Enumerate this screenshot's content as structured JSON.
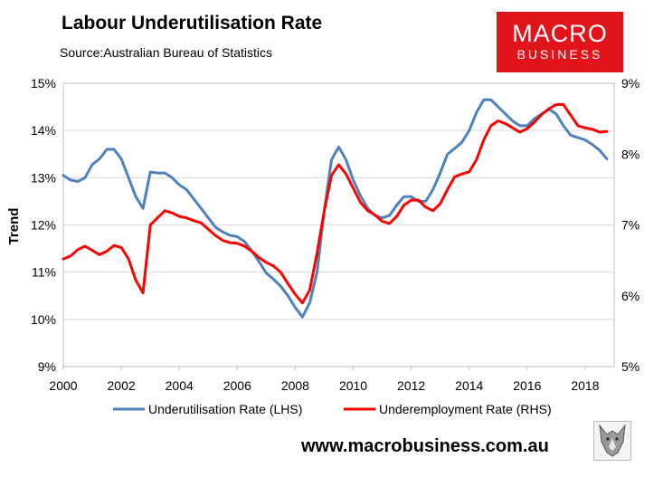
{
  "header": {
    "title": "Labour Underutilisation Rate",
    "source": "Source:Australian Bureau of Statistics"
  },
  "logo": {
    "line1": "MACRO",
    "line2": "BUSINESS",
    "color": "#e1141b"
  },
  "footer": {
    "website": "www.macrobusiness.com.au",
    "badge_icon": "wolf-icon"
  },
  "chart_data": {
    "type": "line",
    "title": "Labour Underutilisation Rate",
    "ylabel": "Trend",
    "xlim": [
      2000,
      2019
    ],
    "x_ticks": [
      "2000",
      "2002",
      "2004",
      "2006",
      "2008",
      "2010",
      "2012",
      "2014",
      "2016",
      "2018"
    ],
    "left_axis": {
      "ylim": [
        9,
        15
      ],
      "ticks": [
        "9%",
        "10%",
        "11%",
        "12%",
        "13%",
        "14%",
        "15%"
      ]
    },
    "right_axis": {
      "ylim": [
        5,
        9
      ],
      "ticks": [
        "5%",
        "6%",
        "7%",
        "8%",
        "9%"
      ]
    },
    "legend_position": "bottom",
    "series": [
      {
        "name": "Underutilisation Rate (LHS)",
        "axis": "left",
        "color": "#4f81bd",
        "x": [
          2000.0,
          2000.25,
          2000.5,
          2000.75,
          2001.0,
          2001.25,
          2001.5,
          2001.75,
          2002.0,
          2002.25,
          2002.5,
          2002.75,
          2003.0,
          2003.25,
          2003.5,
          2003.75,
          2004.0,
          2004.25,
          2004.5,
          2004.75,
          2005.0,
          2005.25,
          2005.5,
          2005.75,
          2006.0,
          2006.25,
          2006.5,
          2006.75,
          2007.0,
          2007.25,
          2007.5,
          2007.75,
          2008.0,
          2008.25,
          2008.5,
          2008.75,
          2009.0,
          2009.25,
          2009.5,
          2009.75,
          2010.0,
          2010.25,
          2010.5,
          2010.75,
          2011.0,
          2011.25,
          2011.5,
          2011.75,
          2012.0,
          2012.25,
          2012.5,
          2012.75,
          2013.0,
          2013.25,
          2013.5,
          2013.75,
          2014.0,
          2014.25,
          2014.5,
          2014.75,
          2015.0,
          2015.25,
          2015.5,
          2015.75,
          2016.0,
          2016.25,
          2016.5,
          2016.75,
          2017.0,
          2017.25,
          2017.5,
          2017.75,
          2018.0,
          2018.25,
          2018.5,
          2018.75
        ],
        "values": [
          13.05,
          12.95,
          12.92,
          13.0,
          13.28,
          13.4,
          13.6,
          13.6,
          13.4,
          13.0,
          12.6,
          12.35,
          13.12,
          13.1,
          13.1,
          13.0,
          12.85,
          12.75,
          12.55,
          12.35,
          12.15,
          11.95,
          11.85,
          11.78,
          11.75,
          11.65,
          11.45,
          11.22,
          10.98,
          10.85,
          10.7,
          10.5,
          10.25,
          10.05,
          10.35,
          11.0,
          12.3,
          13.38,
          13.65,
          13.38,
          12.95,
          12.62,
          12.35,
          12.2,
          12.15,
          12.2,
          12.42,
          12.6,
          12.6,
          12.5,
          12.5,
          12.75,
          13.1,
          13.5,
          13.62,
          13.75,
          14.0,
          14.38,
          14.65,
          14.65,
          14.5,
          14.35,
          14.2,
          14.1,
          14.1,
          14.25,
          14.35,
          14.45,
          14.35,
          14.1,
          13.9,
          13.85,
          13.8,
          13.7,
          13.58,
          13.4
        ]
      },
      {
        "name": "Underemployment Rate (RHS)",
        "axis": "right",
        "color": "#ff0000",
        "x": [
          2000.0,
          2000.25,
          2000.5,
          2000.75,
          2001.0,
          2001.25,
          2001.5,
          2001.75,
          2002.0,
          2002.25,
          2002.5,
          2002.75,
          2003.0,
          2003.25,
          2003.5,
          2003.75,
          2004.0,
          2004.25,
          2004.5,
          2004.75,
          2005.0,
          2005.25,
          2005.5,
          2005.75,
          2006.0,
          2006.25,
          2006.5,
          2006.75,
          2007.0,
          2007.25,
          2007.5,
          2007.75,
          2008.0,
          2008.25,
          2008.5,
          2008.75,
          2009.0,
          2009.25,
          2009.5,
          2009.75,
          2010.0,
          2010.25,
          2010.5,
          2010.75,
          2011.0,
          2011.25,
          2011.5,
          2011.75,
          2012.0,
          2012.25,
          2012.5,
          2012.75,
          2013.0,
          2013.25,
          2013.5,
          2013.75,
          2014.0,
          2014.25,
          2014.5,
          2014.75,
          2015.0,
          2015.25,
          2015.5,
          2015.75,
          2016.0,
          2016.25,
          2016.5,
          2016.75,
          2017.0,
          2017.25,
          2017.5,
          2017.75,
          2018.0,
          2018.25,
          2018.5,
          2018.75
        ],
        "values": [
          6.52,
          6.56,
          6.65,
          6.7,
          6.64,
          6.58,
          6.63,
          6.71,
          6.68,
          6.52,
          6.22,
          6.04,
          7.0,
          7.1,
          7.2,
          7.17,
          7.12,
          7.1,
          7.06,
          7.03,
          6.94,
          6.85,
          6.78,
          6.75,
          6.74,
          6.7,
          6.63,
          6.54,
          6.47,
          6.42,
          6.33,
          6.17,
          6.02,
          5.9,
          6.08,
          6.6,
          7.2,
          7.7,
          7.85,
          7.72,
          7.52,
          7.32,
          7.2,
          7.14,
          7.05,
          7.02,
          7.12,
          7.28,
          7.35,
          7.35,
          7.25,
          7.2,
          7.3,
          7.5,
          7.68,
          7.72,
          7.75,
          7.92,
          8.2,
          8.4,
          8.47,
          8.43,
          8.37,
          8.31,
          8.36,
          8.45,
          8.56,
          8.64,
          8.7,
          8.7,
          8.55,
          8.4,
          8.37,
          8.35,
          8.31,
          8.32
        ]
      }
    ]
  }
}
